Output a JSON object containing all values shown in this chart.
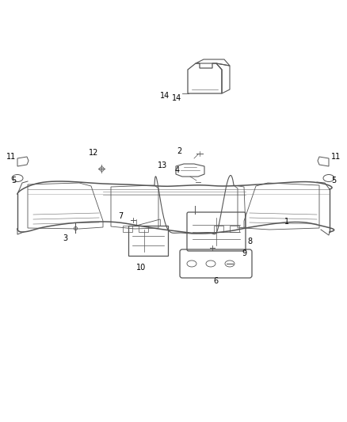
{
  "background_color": "#ffffff",
  "line_color": "#555555",
  "dark_color": "#333333",
  "text_color": "#000000",
  "fig_width": 4.38,
  "fig_height": 5.33,
  "dpi": 100
}
